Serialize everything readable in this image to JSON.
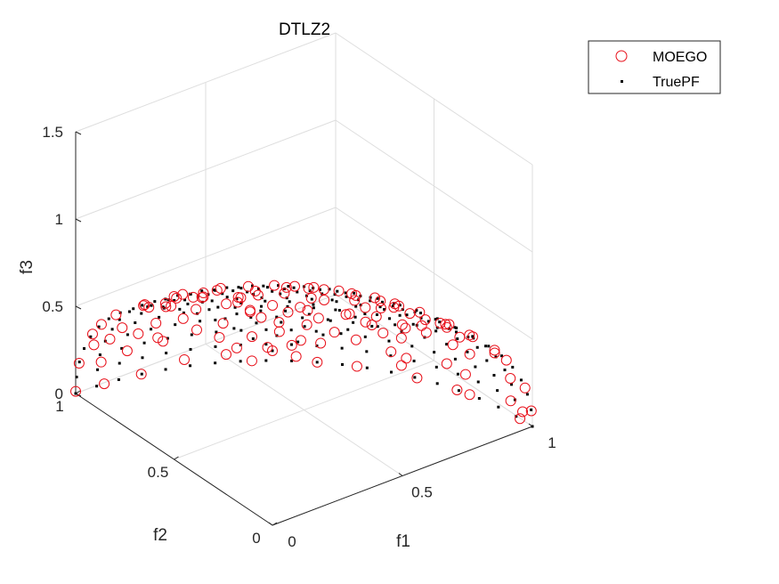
{
  "chart_data": {
    "type": "scatter3d",
    "title": "DTLZ2",
    "xlabel": "f1",
    "ylabel": "f2",
    "zlabel": "f3",
    "xlim": [
      0,
      1
    ],
    "ylim": [
      0,
      1
    ],
    "zlim": [
      0,
      1.5
    ],
    "xticks": [
      "0",
      "0.5",
      "1"
    ],
    "yticks": [
      "0",
      "0.5",
      "1"
    ],
    "zticks": [
      "0",
      "0.5",
      "1",
      "1.5"
    ],
    "grid": true,
    "legend_position": "top-right",
    "series": [
      {
        "name": "MOEGO",
        "marker": "open-circle",
        "color": "#e8101a",
        "generator": "spherical-front-r1-noisy",
        "azimuth_steps": 14,
        "elevation_steps": 12
      },
      {
        "name": "TruePF",
        "marker": "dot",
        "color": "#000000",
        "generator": "spherical-front-r1",
        "azimuth_steps": 20,
        "elevation_steps": 16
      }
    ]
  }
}
